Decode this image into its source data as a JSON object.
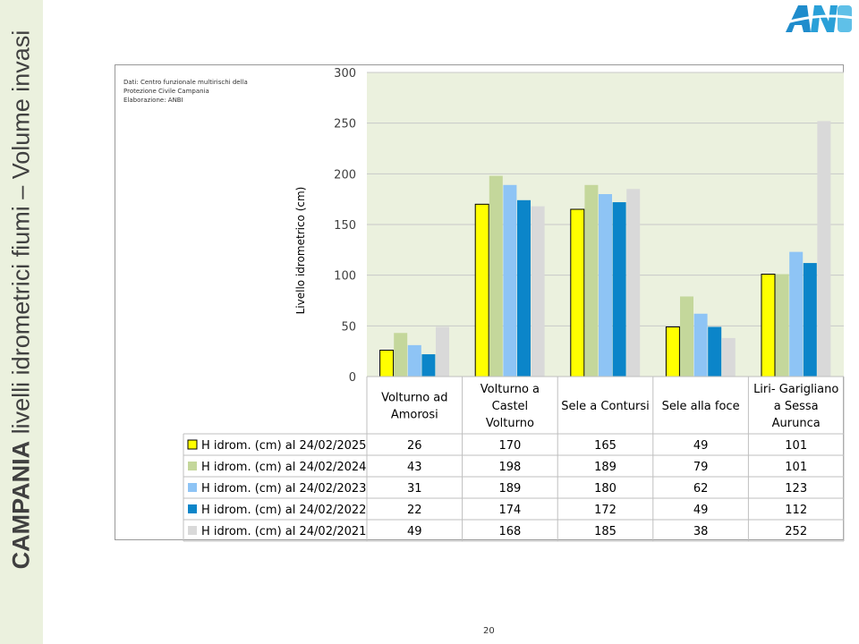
{
  "slide": {
    "title_bold": "CAMPANIA",
    "title_rest": " livelli idrometrici fiumi – Volume invasi",
    "page_number": "20",
    "logo_text": "ANBI"
  },
  "note": {
    "line1": "Dati: Centro funzionale multirischi della",
    "line2": "Protezione Civile Campania",
    "line3": "Elaborazione: ANBI"
  },
  "chart_data": {
    "type": "bar",
    "ylabel": "Livello idrometrico (cm)",
    "ylim": [
      0,
      300
    ],
    "yticks": [
      0,
      50,
      100,
      150,
      200,
      250,
      300
    ],
    "grid": true,
    "legend": "table-below",
    "categories": [
      [
        "Volturno ad",
        "Amorosi"
      ],
      [
        "Volturno a",
        "Castel",
        "Volturno"
      ],
      [
        "Sele a Contursi"
      ],
      [
        "Sele alla foce"
      ],
      [
        "Liri- Garigliano",
        "a Sessa",
        "Aurunca"
      ]
    ],
    "series": [
      {
        "name": "H idrom. (cm) al 24/02/2025",
        "color": "#ffff00",
        "border": "#000000",
        "values": [
          26,
          170,
          165,
          49,
          101
        ]
      },
      {
        "name": "H idrom. (cm) al 24/02/2024",
        "color": "#c4d79b",
        "values": [
          43,
          198,
          189,
          79,
          101
        ]
      },
      {
        "name": "H idrom. (cm) al 24/02/2023",
        "color": "#8ec4f5",
        "values": [
          31,
          189,
          180,
          62,
          123
        ]
      },
      {
        "name": "H idrom. (cm) al 24/02/2022",
        "color": "#0b85c9",
        "values": [
          22,
          174,
          172,
          49,
          112
        ]
      },
      {
        "name": "H idrom. (cm) al 24/02/2021",
        "color": "#d9d9d9",
        "values": [
          49,
          168,
          185,
          38,
          252
        ]
      }
    ]
  }
}
